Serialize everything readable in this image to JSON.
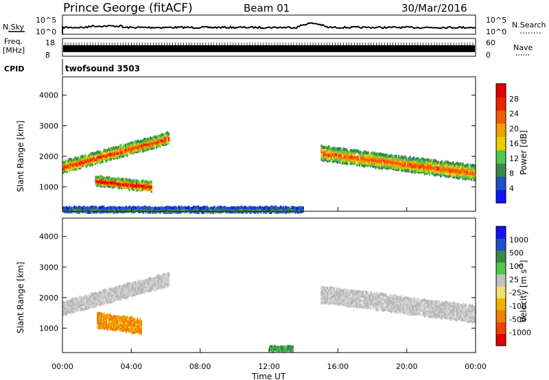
{
  "header": {
    "title": "Prince George (fitACF)",
    "beam": "Beam 01",
    "date": "30/Mar/2016"
  },
  "top_panels": {
    "nsky_label": "N.Sky",
    "nsky_ticks": [
      "10^5",
      "10^0"
    ],
    "nsearch_label": "N.Search",
    "nsearch_ticks": [
      "10^5",
      "10^0"
    ],
    "freq_label_1": "Freq.",
    "freq_label_2": "[MHz]",
    "freq_ticks": [
      "18",
      "8"
    ],
    "nave_label": "Nave",
    "nave_ticks": [
      "60",
      "0"
    ],
    "cpid_label": "CPID",
    "cpid_value": "twofsound 3503"
  },
  "colors": {
    "power_scale": [
      "#1010ff",
      "#2050c8",
      "#3a8a4a",
      "#50c850",
      "#e8d000",
      "#f0a000",
      "#f06000",
      "#f02000",
      "#e00000"
    ],
    "velocity_scale": [
      "#e00000",
      "#f04000",
      "#f08000",
      "#f0b000",
      "#f0e070",
      "#c0c0c0",
      "#50c850",
      "#3a8a4a",
      "#2050c8",
      "#1010ff"
    ],
    "ground_scatter": "#b8b8b8"
  },
  "chart_data": [
    {
      "type": "heatmap",
      "title": "",
      "xlabel": "Time UT",
      "ylabel": "Slant Range [km]",
      "x_ticks": [
        "00:00",
        "04:00",
        "08:00",
        "12:00",
        "16:00",
        "20:00",
        "00:00"
      ],
      "y_ticks": [
        "1000",
        "2000",
        "3000",
        "4000"
      ],
      "ylim": [
        200,
        4600
      ],
      "colorbar": {
        "label": "Power [dB]",
        "ticks": [
          "4",
          "8",
          "12",
          "16",
          "20",
          "24",
          "28"
        ],
        "range": [
          0,
          30
        ]
      },
      "bands": [
        {
          "t_start": 0.0,
          "t_end": 6.2,
          "range_start_km": 1700,
          "range_end_km": 2650,
          "thickness_km": 320,
          "peak_db": 26
        },
        {
          "t_start": 1.9,
          "t_end": 5.2,
          "range_start_km": 1250,
          "range_end_km": 1050,
          "thickness_km": 260,
          "peak_db": 30
        },
        {
          "t_start": 15.0,
          "t_end": 24.0,
          "range_start_km": 2150,
          "range_end_km": 1500,
          "thickness_km": 420,
          "peak_db": 24
        },
        {
          "t_start": 0.0,
          "t_end": 14.0,
          "range_start_km": 300,
          "range_end_km": 300,
          "thickness_km": 120,
          "peak_db": 12
        }
      ]
    },
    {
      "type": "heatmap",
      "title": "",
      "xlabel": "Time UT",
      "ylabel": "Slant Range [km]",
      "x_ticks": [
        "00:00",
        "04:00",
        "08:00",
        "12:00",
        "16:00",
        "20:00",
        "00:00"
      ],
      "y_ticks": [
        "1000",
        "2000",
        "3000",
        "4000"
      ],
      "ylim": [
        200,
        4600
      ],
      "colorbar": {
        "label": "Velocity [m s^-1]",
        "label_main": "Velocity [m s",
        "label_exp": "-1",
        "label_end": "]",
        "ticks": [
          "1000",
          "500",
          "100",
          "25",
          "-25",
          "-100",
          "-500",
          "-1000"
        ]
      },
      "bands": [
        {
          "t_start": 0.0,
          "t_end": 6.2,
          "range_start_km": 1700,
          "range_end_km": 2650,
          "thickness_km": 380,
          "kind": "ground"
        },
        {
          "t_start": 2.0,
          "t_end": 4.6,
          "range_start_km": 1300,
          "range_end_km": 1100,
          "thickness_km": 420,
          "velocity": -300
        },
        {
          "t_start": 15.0,
          "t_end": 24.0,
          "range_start_km": 2150,
          "range_end_km": 1500,
          "thickness_km": 480,
          "kind": "ground"
        },
        {
          "t_start": 12.0,
          "t_end": 13.4,
          "range_start_km": 380,
          "range_end_km": 380,
          "thickness_km": 120,
          "velocity": 120
        }
      ]
    }
  ]
}
